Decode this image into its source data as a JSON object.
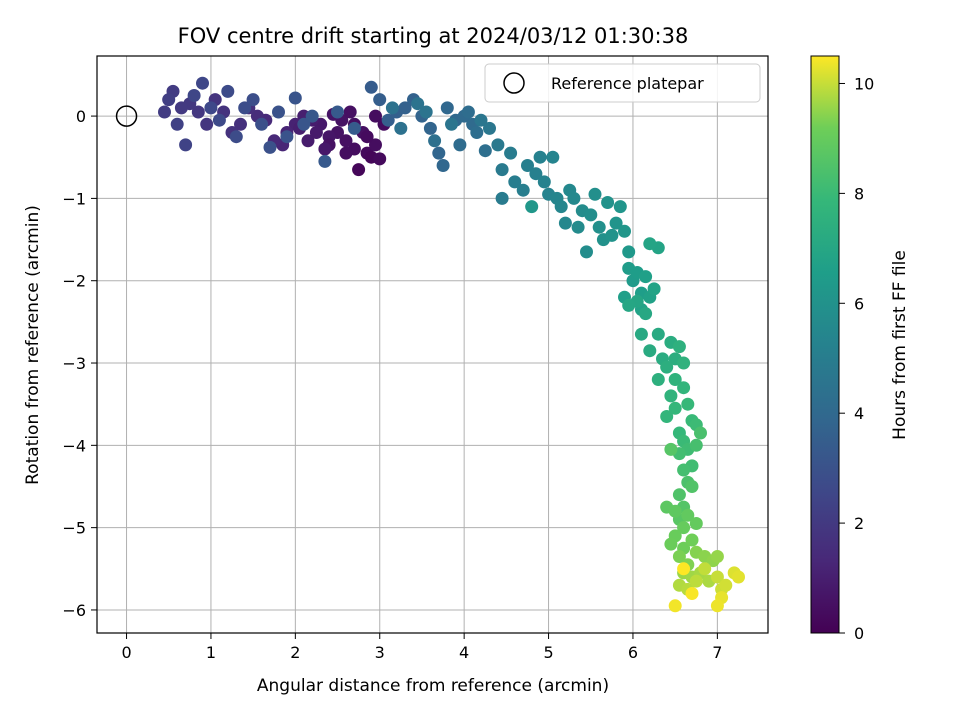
{
  "chart_data": {
    "type": "scatter",
    "title": "FOV centre drift starting at 2024/03/12 01:30:38",
    "xlabel": "Angular distance from reference (arcmin)",
    "ylabel": "Rotation from reference (arcmin)",
    "xlim": [
      -0.35,
      7.6
    ],
    "ylim": [
      -6.28,
      0.73
    ],
    "x_ticks": [
      0,
      1,
      2,
      3,
      4,
      5,
      6,
      7
    ],
    "y_ticks": [
      0,
      -1,
      -2,
      -3,
      -4,
      -5,
      -6
    ],
    "grid": true,
    "legend": {
      "label": "Reference platepar",
      "placement": "top-right"
    },
    "reference_point": {
      "x": 0,
      "y": 0
    },
    "colorbar": {
      "label": "Hours from first FF file",
      "colormap": "viridis",
      "range": [
        0,
        10.5
      ],
      "ticks": [
        0,
        2,
        4,
        6,
        8,
        10
      ]
    },
    "series": [
      {
        "note": "points listed as [x arcmin, y arcmin, hours]",
        "points": [
          [
            2.75,
            -0.65,
            0.2
          ],
          [
            2.85,
            -0.45,
            0.3
          ],
          [
            2.95,
            -0.35,
            0.4
          ],
          [
            2.8,
            -0.2,
            0.5
          ],
          [
            2.9,
            -0.5,
            0.2
          ],
          [
            3.0,
            -0.52,
            0.3
          ],
          [
            2.7,
            -0.4,
            0.4
          ],
          [
            2.6,
            -0.3,
            0.5
          ],
          [
            2.5,
            -0.2,
            0.6
          ],
          [
            2.4,
            -0.25,
            0.7
          ],
          [
            2.3,
            -0.1,
            0.8
          ],
          [
            2.2,
            -0.05,
            0.9
          ],
          [
            2.1,
            0.0,
            1.0
          ],
          [
            2.0,
            -0.1,
            1.1
          ],
          [
            1.9,
            -0.2,
            1.2
          ],
          [
            2.15,
            -0.3,
            0.9
          ],
          [
            2.05,
            -0.15,
            1.0
          ],
          [
            2.55,
            -0.05,
            0.6
          ],
          [
            2.65,
            0.05,
            0.5
          ],
          [
            2.95,
            0.0,
            0.4
          ],
          [
            3.05,
            -0.1,
            0.35
          ],
          [
            2.85,
            -0.25,
            0.35
          ],
          [
            2.6,
            -0.45,
            0.45
          ],
          [
            2.4,
            -0.35,
            0.55
          ],
          [
            2.7,
            -0.1,
            0.45
          ],
          [
            2.45,
            0.02,
            0.65
          ],
          [
            2.35,
            -0.4,
            0.75
          ],
          [
            2.25,
            -0.2,
            0.85
          ],
          [
            1.85,
            -0.35,
            1.25
          ],
          [
            1.75,
            -0.3,
            1.35
          ],
          [
            1.65,
            -0.05,
            1.4
          ],
          [
            1.55,
            0.0,
            1.5
          ],
          [
            1.45,
            0.1,
            1.6
          ],
          [
            1.35,
            -0.1,
            1.65
          ],
          [
            1.25,
            -0.2,
            1.7
          ],
          [
            1.15,
            0.05,
            1.75
          ],
          [
            1.05,
            0.2,
            1.8
          ],
          [
            0.95,
            -0.1,
            1.85
          ],
          [
            0.85,
            0.05,
            1.9
          ],
          [
            0.75,
            0.15,
            1.95
          ],
          [
            0.65,
            0.1,
            2.0
          ],
          [
            0.55,
            0.3,
            2.05
          ],
          [
            0.45,
            0.05,
            2.1
          ],
          [
            0.5,
            0.2,
            2.2
          ],
          [
            0.6,
            -0.1,
            2.3
          ],
          [
            0.7,
            -0.35,
            2.4
          ],
          [
            0.8,
            0.25,
            2.5
          ],
          [
            0.9,
            0.4,
            2.55
          ],
          [
            1.0,
            0.1,
            2.6
          ],
          [
            1.1,
            -0.05,
            2.65
          ],
          [
            1.2,
            0.3,
            2.7
          ],
          [
            1.3,
            -0.25,
            2.75
          ],
          [
            1.4,
            0.1,
            2.8
          ],
          [
            1.5,
            0.2,
            2.85
          ],
          [
            1.6,
            -0.1,
            2.9
          ],
          [
            1.7,
            -0.38,
            2.95
          ],
          [
            1.8,
            0.05,
            3.0
          ],
          [
            1.9,
            -0.25,
            3.05
          ],
          [
            2.0,
            0.22,
            3.1
          ],
          [
            2.1,
            -0.1,
            3.15
          ],
          [
            2.2,
            0.0,
            3.2
          ],
          [
            2.35,
            -0.55,
            3.3
          ],
          [
            2.5,
            0.05,
            3.35
          ],
          [
            2.7,
            -0.15,
            3.4
          ],
          [
            2.9,
            0.35,
            3.45
          ],
          [
            3.0,
            0.2,
            3.5
          ],
          [
            3.1,
            -0.05,
            3.55
          ],
          [
            3.2,
            0.05,
            3.6
          ],
          [
            3.3,
            0.1,
            3.65
          ],
          [
            3.4,
            0.2,
            3.7
          ],
          [
            3.5,
            0.0,
            3.75
          ],
          [
            3.6,
            -0.15,
            3.8
          ],
          [
            3.7,
            -0.45,
            3.85
          ],
          [
            3.75,
            -0.6,
            3.9
          ],
          [
            3.8,
            0.1,
            3.95
          ],
          [
            3.9,
            -0.05,
            4.0
          ],
          [
            4.0,
            0.0,
            4.05
          ],
          [
            4.1,
            -0.1,
            4.1
          ],
          [
            3.95,
            -0.35,
            4.15
          ],
          [
            4.05,
            0.05,
            4.2
          ],
          [
            4.15,
            -0.2,
            4.25
          ],
          [
            4.25,
            -0.42,
            4.3
          ],
          [
            3.65,
            -0.3,
            4.35
          ],
          [
            3.25,
            -0.15,
            4.4
          ],
          [
            3.15,
            0.1,
            4.45
          ],
          [
            3.45,
            0.15,
            4.5
          ],
          [
            3.55,
            0.05,
            4.55
          ],
          [
            3.85,
            -0.1,
            4.6
          ],
          [
            4.2,
            -0.05,
            4.65
          ],
          [
            4.3,
            -0.15,
            4.7
          ],
          [
            4.4,
            -0.35,
            4.8
          ],
          [
            4.45,
            -0.65,
            4.85
          ],
          [
            4.45,
            -1.0,
            4.9
          ],
          [
            4.55,
            -0.45,
            4.95
          ],
          [
            4.6,
            -0.8,
            5.0
          ],
          [
            4.7,
            -0.9,
            5.05
          ],
          [
            4.75,
            -0.6,
            5.1
          ],
          [
            4.85,
            -0.7,
            5.15
          ],
          [
            4.9,
            -0.5,
            5.2
          ],
          [
            4.95,
            -0.8,
            5.25
          ],
          [
            5.0,
            -0.95,
            5.3
          ],
          [
            5.05,
            -0.5,
            5.35
          ],
          [
            5.1,
            -1.0,
            5.4
          ],
          [
            5.15,
            -1.1,
            5.45
          ],
          [
            5.2,
            -1.3,
            5.5
          ],
          [
            5.25,
            -0.9,
            5.55
          ],
          [
            5.3,
            -1.0,
            5.6
          ],
          [
            5.35,
            -1.35,
            5.65
          ],
          [
            5.4,
            -1.15,
            5.7
          ],
          [
            5.45,
            -1.65,
            5.75
          ],
          [
            5.5,
            -1.2,
            5.8
          ],
          [
            5.55,
            -0.95,
            5.85
          ],
          [
            5.6,
            -1.35,
            5.9
          ],
          [
            5.65,
            -1.5,
            5.95
          ],
          [
            5.7,
            -1.05,
            6.0
          ],
          [
            5.75,
            -1.45,
            6.05
          ],
          [
            5.8,
            -1.3,
            6.1
          ],
          [
            5.85,
            -1.1,
            6.15
          ],
          [
            5.9,
            -1.4,
            6.2
          ],
          [
            4.8,
            -1.1,
            6.25
          ],
          [
            5.95,
            -1.65,
            6.3
          ],
          [
            6.0,
            -2.0,
            6.4
          ],
          [
            5.95,
            -1.85,
            6.45
          ],
          [
            6.05,
            -1.9,
            6.5
          ],
          [
            6.1,
            -2.15,
            6.55
          ],
          [
            5.9,
            -2.2,
            6.6
          ],
          [
            6.15,
            -1.95,
            6.65
          ],
          [
            6.2,
            -2.2,
            6.7
          ],
          [
            6.1,
            -2.35,
            6.75
          ],
          [
            6.25,
            -2.1,
            6.8
          ],
          [
            6.3,
            -1.6,
            6.85
          ],
          [
            6.2,
            -1.55,
            6.9
          ],
          [
            6.05,
            -2.25,
            6.95
          ],
          [
            5.95,
            -2.3,
            7.0
          ],
          [
            6.15,
            -2.4,
            7.05
          ],
          [
            6.1,
            -2.65,
            7.1
          ],
          [
            6.3,
            -2.65,
            7.15
          ],
          [
            6.2,
            -2.85,
            7.2
          ],
          [
            6.35,
            -2.95,
            7.25
          ],
          [
            6.45,
            -2.75,
            7.3
          ],
          [
            6.5,
            -2.95,
            7.35
          ],
          [
            6.4,
            -3.05,
            7.4
          ],
          [
            6.3,
            -3.2,
            7.45
          ],
          [
            6.55,
            -2.8,
            7.5
          ],
          [
            6.6,
            -3.0,
            7.55
          ],
          [
            6.5,
            -3.2,
            7.6
          ],
          [
            6.45,
            -3.4,
            7.65
          ],
          [
            6.6,
            -3.3,
            7.7
          ],
          [
            6.4,
            -3.65,
            7.75
          ],
          [
            6.5,
            -3.55,
            7.8
          ],
          [
            6.55,
            -3.85,
            7.85
          ],
          [
            6.65,
            -3.5,
            7.9
          ],
          [
            6.7,
            -3.7,
            7.95
          ],
          [
            6.6,
            -3.95,
            8.0
          ],
          [
            6.75,
            -3.75,
            8.05
          ],
          [
            6.65,
            -4.05,
            8.1
          ],
          [
            6.7,
            -4.25,
            8.15
          ],
          [
            6.55,
            -4.1,
            8.2
          ],
          [
            6.6,
            -4.3,
            8.25
          ],
          [
            6.75,
            -4.0,
            8.3
          ],
          [
            6.8,
            -3.85,
            8.35
          ],
          [
            6.65,
            -4.45,
            8.4
          ],
          [
            6.55,
            -4.6,
            8.5
          ],
          [
            6.7,
            -4.5,
            8.55
          ],
          [
            6.6,
            -4.75,
            8.6
          ],
          [
            6.45,
            -4.05,
            8.65
          ],
          [
            6.55,
            -4.9,
            8.7
          ],
          [
            6.4,
            -4.75,
            8.8
          ],
          [
            6.5,
            -4.8,
            8.85
          ],
          [
            6.65,
            -4.85,
            8.9
          ],
          [
            6.75,
            -4.95,
            8.95
          ],
          [
            6.6,
            -5.0,
            9.0
          ],
          [
            6.5,
            -5.1,
            9.05
          ],
          [
            6.45,
            -5.2,
            9.1
          ],
          [
            6.6,
            -5.25,
            9.15
          ],
          [
            6.7,
            -5.15,
            9.2
          ],
          [
            6.55,
            -5.35,
            9.3
          ],
          [
            6.65,
            -5.45,
            9.35
          ],
          [
            6.75,
            -5.3,
            9.4
          ],
          [
            6.85,
            -5.35,
            9.45
          ],
          [
            6.95,
            -5.4,
            9.5
          ],
          [
            7.0,
            -5.35,
            9.55
          ],
          [
            6.6,
            -5.55,
            9.6
          ],
          [
            6.7,
            -5.6,
            9.65
          ],
          [
            6.8,
            -5.55,
            9.7
          ],
          [
            6.9,
            -5.65,
            9.75
          ],
          [
            6.55,
            -5.7,
            9.8
          ],
          [
            6.65,
            -5.75,
            9.85
          ],
          [
            6.75,
            -5.65,
            9.9
          ],
          [
            6.85,
            -5.5,
            9.95
          ],
          [
            7.0,
            -5.6,
            10.0
          ],
          [
            7.05,
            -5.75,
            10.05
          ],
          [
            7.1,
            -5.7,
            10.1
          ],
          [
            7.2,
            -5.55,
            10.2
          ],
          [
            7.25,
            -5.6,
            10.25
          ],
          [
            7.05,
            -5.85,
            10.3
          ],
          [
            7.0,
            -5.95,
            10.35
          ],
          [
            6.5,
            -5.95,
            10.4
          ],
          [
            6.7,
            -5.8,
            10.45
          ],
          [
            6.6,
            -5.5,
            10.5
          ]
        ]
      }
    ]
  }
}
